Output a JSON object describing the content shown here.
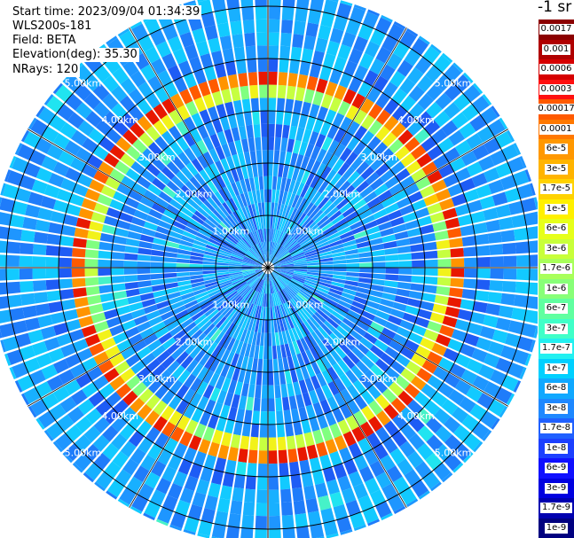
{
  "info": {
    "start_time": "Start time: 2023/09/04 01:34:39",
    "instrument": "WLS200s-181",
    "field": "Field: BETA",
    "elevation": "Elevation(deg): 35.30",
    "nrays": "NRays: 120"
  },
  "colorbar": {
    "title": "-1 sr",
    "labels": [
      "0.0017",
      "0.001",
      "0.0006",
      "0.0003",
      "0.00017",
      "0.0001",
      "6e-5",
      "3e-5",
      "1.7e-5",
      "1e-5",
      "6e-6",
      "3e-6",
      "1.7e-6",
      "1e-6",
      "6e-7",
      "3e-7",
      "1.7e-7",
      "1e-7",
      "6e-8",
      "3e-8",
      "1.7e-8",
      "1e-8",
      "6e-9",
      "3e-9",
      "1.7e-9",
      "1e-9"
    ],
    "colors": [
      "#8b0000",
      "#b00000",
      "#d60000",
      "#ff1010",
      "#ff5a00",
      "#ff7800",
      "#ff9800",
      "#ffb400",
      "#ffd200",
      "#fff000",
      "#e6ff1a",
      "#c8ff3a",
      "#a8ff5a",
      "#88ff78",
      "#60ffa0",
      "#40ffc8",
      "#22f0f0",
      "#00d0ff",
      "#10a8ff",
      "#1e88ff",
      "#2060ff",
      "#1c40ff",
      "#1010ff",
      "#0000e0",
      "#0000b0",
      "#000080"
    ]
  },
  "chart_data": {
    "type": "heatmap",
    "projection": "polar PPI",
    "nrays": 120,
    "range_rings_km": [
      1.0,
      2.0,
      3.0,
      4.0,
      5.0
    ],
    "ring_labels": [
      "1.00km",
      "2.00km",
      "3.00km",
      "4.00km",
      "5.00km"
    ],
    "max_range_km": 5.3,
    "feature": "enhanced backscatter ring near 3.5 km range (about 1e-4 to 1e-5 sr-1), background mostly 1e-7 to 1e-8 sr-1"
  }
}
